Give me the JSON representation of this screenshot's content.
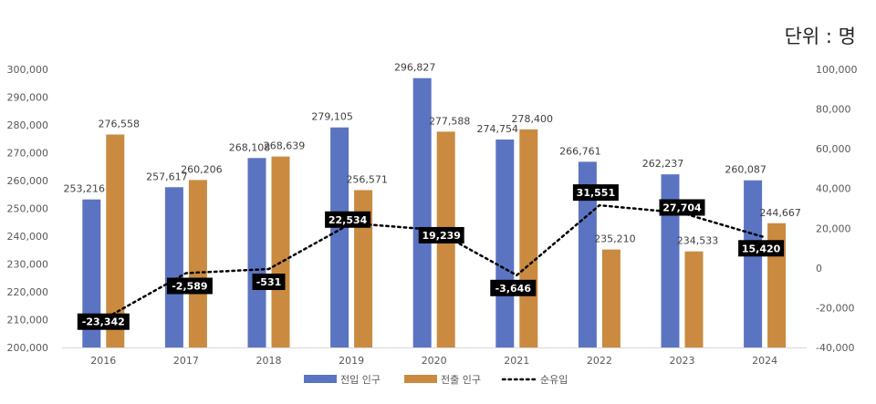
{
  "unit_label": "단위 : 명",
  "chart_data": {
    "type": "bar+line",
    "categories": [
      "2016",
      "2017",
      "2018",
      "2019",
      "2020",
      "2021",
      "2022",
      "2023",
      "2024"
    ],
    "series": [
      {
        "name": "전입 인구",
        "type": "bar",
        "axis": "left",
        "color": "#5B74C2",
        "values": [
          253216,
          257617,
          268108,
          279105,
          296827,
          274754,
          266761,
          262237,
          260087
        ],
        "labels": [
          "253,216",
          "257,617",
          "268,108",
          "279,105",
          "296,827",
          "274,754",
          "266,761",
          "262,237",
          "260,087"
        ]
      },
      {
        "name": "전출 인구",
        "type": "bar",
        "axis": "left",
        "color": "#CA8A40",
        "values": [
          276558,
          260206,
          268639,
          256571,
          277588,
          278400,
          235210,
          234533,
          244667
        ],
        "labels": [
          "276,558",
          "260,206",
          "268,639",
          "256,571",
          "277,588",
          "278,400",
          "235,210",
          "234,533",
          "244,667"
        ]
      },
      {
        "name": "순유입",
        "type": "line",
        "style": "dotted",
        "axis": "right",
        "color": "#000000",
        "values": [
          -23342,
          -2589,
          -531,
          22534,
          19239,
          -3646,
          31551,
          27704,
          15420
        ],
        "labels": [
          "-23,342",
          "-2,589",
          "-531",
          "22,534",
          "19,239",
          "-3,646",
          "31,551",
          "27,704",
          "15,420"
        ]
      }
    ],
    "left_axis": {
      "range": [
        200000,
        300000
      ],
      "ticks": [
        "200,000",
        "210,000",
        "220,000",
        "230,000",
        "240,000",
        "250,000",
        "260,000",
        "270,000",
        "280,000",
        "290,000",
        "300,000"
      ]
    },
    "right_axis": {
      "range": [
        -40000,
        100000
      ],
      "ticks": [
        "-40,000",
        "-20,000",
        "0",
        "20,000",
        "40,000",
        "60,000",
        "80,000",
        "100,000"
      ]
    },
    "grid": false,
    "legend_placement": "bottom"
  }
}
